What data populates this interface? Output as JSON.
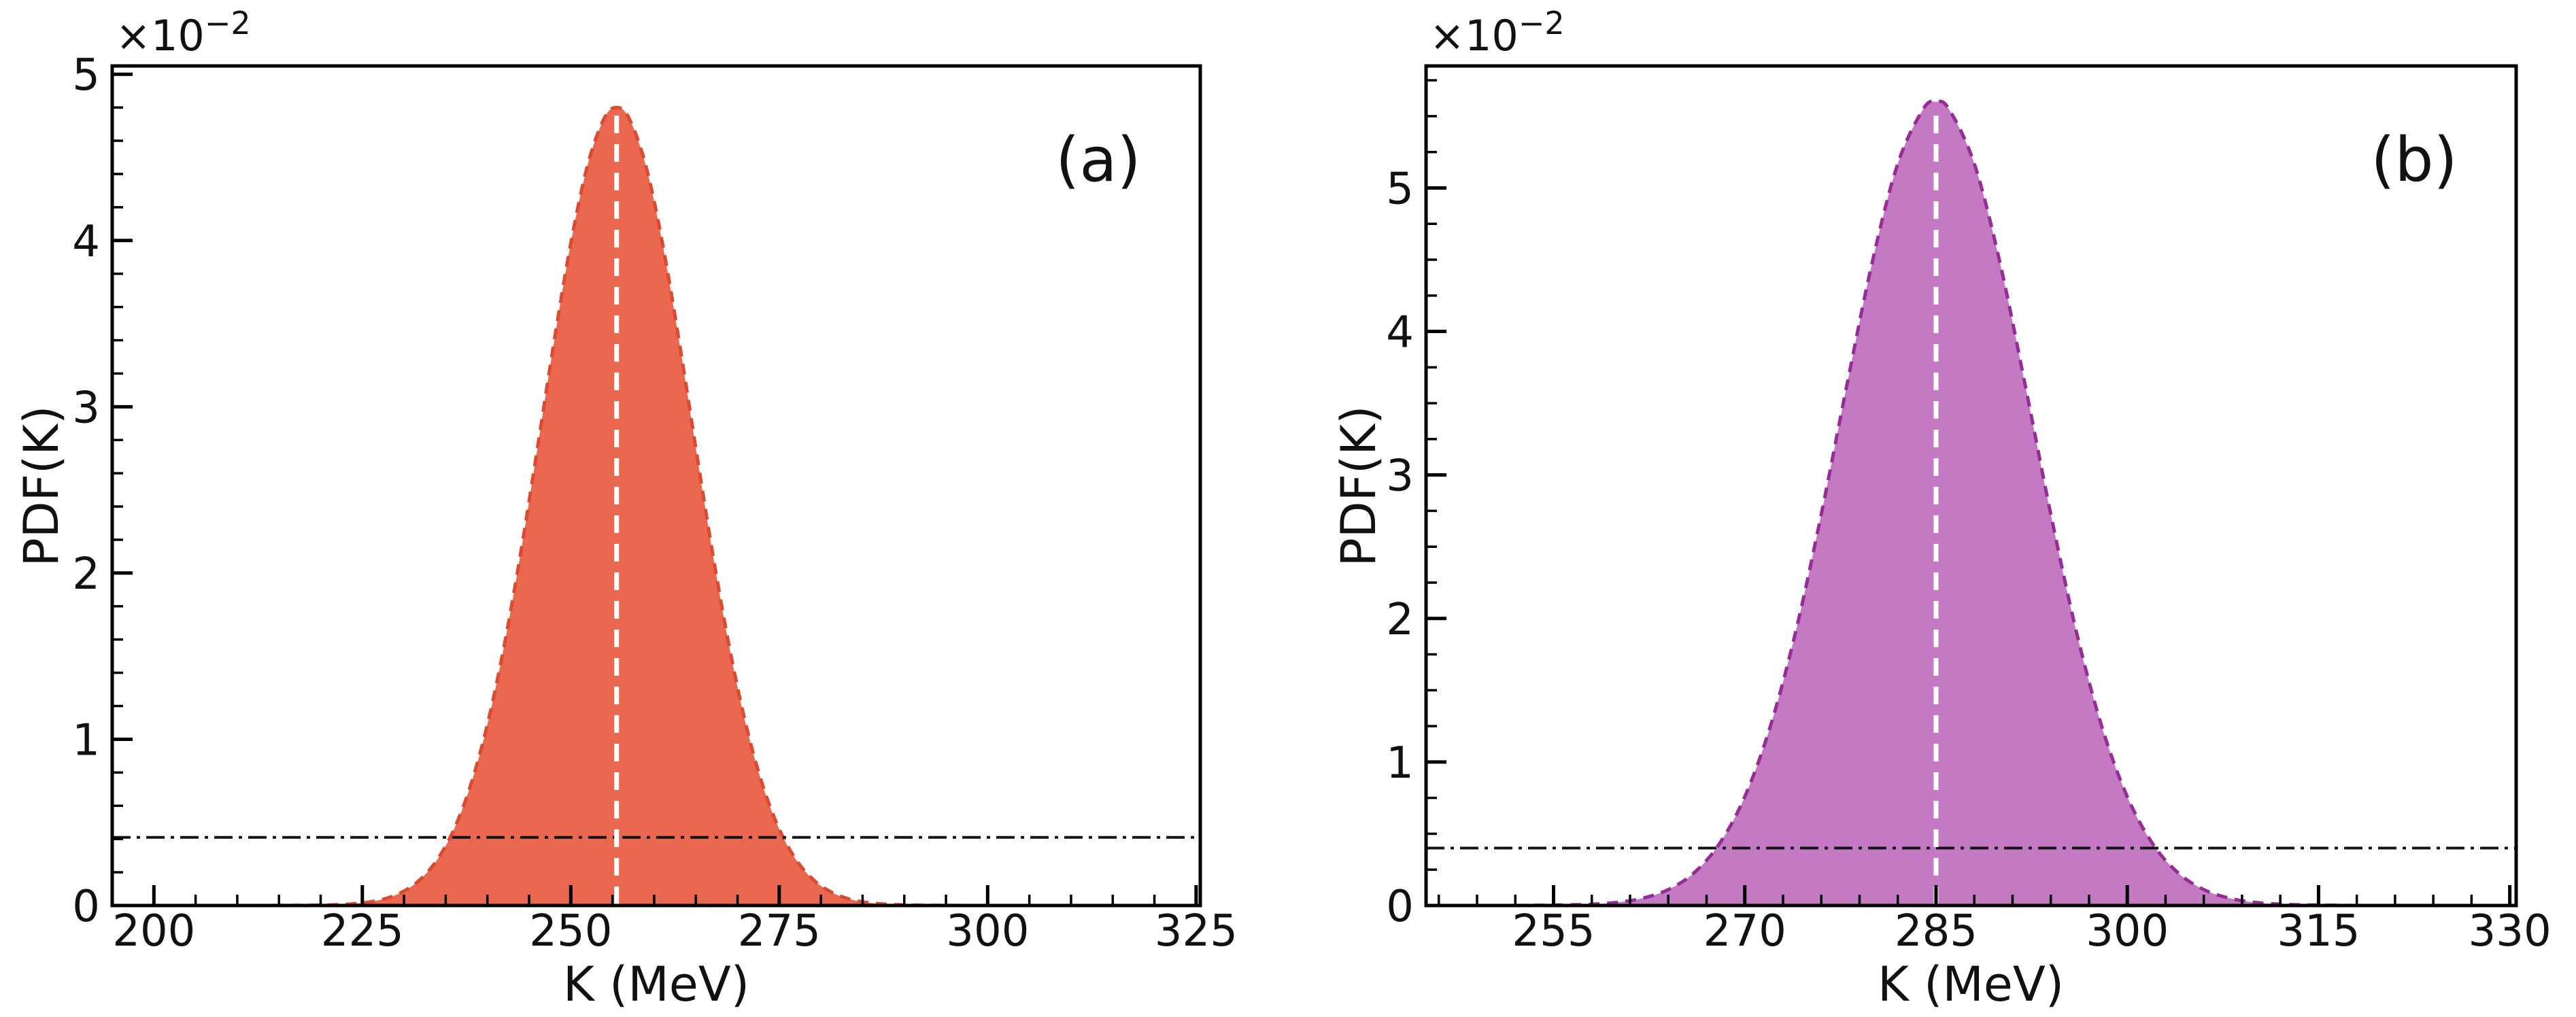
{
  "figure": {
    "background": "#ffffff",
    "description_visible_text_only": true
  },
  "chart_data": [
    {
      "type": "area",
      "panel_tag": "(a)",
      "xlabel": "K (MeV)",
      "ylabel": "PDF(K)",
      "y_offset_base": "×10",
      "y_offset_exp": "−2",
      "y_units": "PDF value × 10⁻²",
      "xlim": [
        195,
        325.5
      ],
      "ylim": [
        0,
        5.05
      ],
      "x_major_ticks": [
        200,
        225,
        250,
        275,
        300,
        325
      ],
      "x_minor_step": 5,
      "y_major_ticks": [
        0,
        1,
        2,
        3,
        4,
        5
      ],
      "y_minor_step": 0.2,
      "grid": false,
      "legend": null,
      "distribution": {
        "mean": 255.5,
        "sigma": 9.0,
        "peak_pdf": 4.8
      },
      "mean_vline_x": 255.5,
      "threshold_hline_y": 0.41,
      "colors": {
        "fill": "#E9684F",
        "edge": "#DC4A31",
        "vline": "#FFFFFF",
        "hline": "#141414",
        "axis": "#000000"
      },
      "points": [
        [
          212,
          0
        ],
        [
          216,
          0.001
        ],
        [
          220,
          0.002
        ],
        [
          222,
          0.005
        ],
        [
          224,
          0.011
        ],
        [
          226,
          0.022
        ],
        [
          228,
          0.045
        ],
        [
          230,
          0.087
        ],
        [
          232,
          0.159
        ],
        [
          234,
          0.277
        ],
        [
          236,
          0.459
        ],
        [
          238,
          0.725
        ],
        [
          240,
          1.089
        ],
        [
          242,
          1.559
        ],
        [
          244,
          2.122
        ],
        [
          246,
          2.75
        ],
        [
          248,
          3.392
        ],
        [
          250,
          3.982
        ],
        [
          252,
          4.45
        ],
        [
          254,
          4.734
        ],
        [
          255.5,
          4.8
        ],
        [
          257,
          4.734
        ],
        [
          259,
          4.45
        ],
        [
          261,
          3.982
        ],
        [
          263,
          3.392
        ],
        [
          265,
          2.75
        ],
        [
          267,
          2.122
        ],
        [
          269,
          1.559
        ],
        [
          271,
          1.089
        ],
        [
          273,
          0.725
        ],
        [
          275,
          0.459
        ],
        [
          277,
          0.277
        ],
        [
          279,
          0.159
        ],
        [
          281,
          0.087
        ],
        [
          283,
          0.045
        ],
        [
          285,
          0.022
        ],
        [
          287,
          0.011
        ],
        [
          289,
          0.005
        ],
        [
          291,
          0.002
        ],
        [
          294,
          0.001
        ],
        [
          298,
          0
        ]
      ]
    },
    {
      "type": "area",
      "panel_tag": "(b)",
      "xlabel": "K (MeV)",
      "ylabel": "PDF(K)",
      "y_offset_base": "×10",
      "y_offset_exp": "−2",
      "y_units": "PDF value × 10⁻²",
      "xlim": [
        245,
        330.5
      ],
      "ylim": [
        0,
        5.85
      ],
      "x_major_ticks": [
        255,
        270,
        285,
        300,
        315,
        330
      ],
      "x_minor_step": 3,
      "y_major_ticks": [
        0,
        1,
        2,
        3,
        4,
        5
      ],
      "y_minor_step": 0.25,
      "grid": false,
      "legend": null,
      "distribution": {
        "mean": 285,
        "sigma": 7.5,
        "peak_pdf": 5.6
      },
      "mean_vline_x": 285,
      "threshold_hline_y": 0.4,
      "colors": {
        "fill": "#C37AC3",
        "edge": "#962D96",
        "vline": "#FFFFFF",
        "hline": "#141414",
        "axis": "#000000"
      },
      "points": [
        [
          252,
          0
        ],
        [
          256,
          0.004
        ],
        [
          258,
          0.009
        ],
        [
          260,
          0.022
        ],
        [
          262,
          0.051
        ],
        [
          264,
          0.111
        ],
        [
          266,
          0.226
        ],
        [
          268,
          0.429
        ],
        [
          270,
          0.758
        ],
        [
          272,
          1.247
        ],
        [
          274,
          1.91
        ],
        [
          276,
          2.726
        ],
        [
          278,
          3.622
        ],
        [
          280,
          4.484
        ],
        [
          282,
          5.169
        ],
        [
          284,
          5.55
        ],
        [
          285,
          5.6
        ],
        [
          286,
          5.55
        ],
        [
          288,
          5.169
        ],
        [
          290,
          4.484
        ],
        [
          292,
          3.622
        ],
        [
          294,
          2.726
        ],
        [
          296,
          1.91
        ],
        [
          298,
          1.247
        ],
        [
          300,
          0.758
        ],
        [
          302,
          0.429
        ],
        [
          304,
          0.226
        ],
        [
          306,
          0.111
        ],
        [
          308,
          0.051
        ],
        [
          310,
          0.022
        ],
        [
          312,
          0.009
        ],
        [
          314,
          0.004
        ],
        [
          318,
          0
        ]
      ]
    }
  ]
}
